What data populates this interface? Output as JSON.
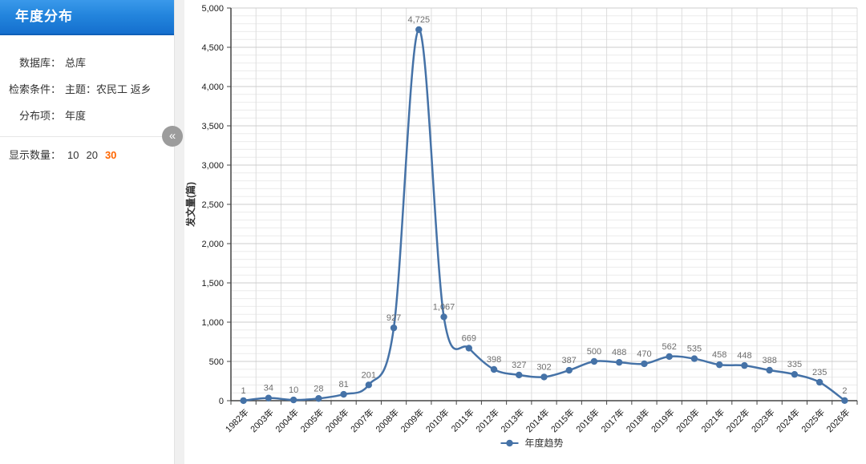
{
  "sidebar": {
    "title": "年度分布",
    "rows": [
      {
        "label": "数据库：",
        "value": "总库"
      },
      {
        "label": "检索条件：",
        "value": "主题：农民工 返乡"
      },
      {
        "label": "分布项：",
        "value": "年度"
      }
    ],
    "display_count": {
      "label": "显示数量：",
      "options": [
        "10",
        "20",
        "30"
      ],
      "selected": "30",
      "selected_color": "#ff6600"
    },
    "collapse_icon": "«"
  },
  "chart_data": {
    "type": "line",
    "title": "",
    "series_name": "年度趋势",
    "ylabel": "发文量(篇)",
    "categories": [
      "1982年",
      "2003年",
      "2004年",
      "2005年",
      "2006年",
      "2007年",
      "2008年",
      "2009年",
      "2010年",
      "2011年",
      "2012年",
      "2013年",
      "2014年",
      "2015年",
      "2016年",
      "2017年",
      "2018年",
      "2019年",
      "2020年",
      "2021年",
      "2022年",
      "2023年",
      "2024年",
      "2025年",
      "2026年"
    ],
    "values": [
      1,
      34,
      10,
      28,
      81,
      201,
      927,
      4725,
      1067,
      669,
      398,
      327,
      302,
      387,
      500,
      488,
      470,
      562,
      535,
      458,
      448,
      388,
      335,
      235,
      2
    ],
    "ylim": [
      0,
      5000
    ],
    "ytick_step": 500,
    "minor_tick_step": 100,
    "grid": true,
    "legend_position": "bottom",
    "line_color": "#4572a7",
    "marker_color": "#4572a7",
    "data_label_color": "#6e6e6e",
    "axis_color": "#444444",
    "tick_label_color": "#1a1a1a",
    "major_grid_color": "#cccccc",
    "minor_grid_color": "#ebebeb",
    "vertical_grid_color": "#dddddd"
  }
}
